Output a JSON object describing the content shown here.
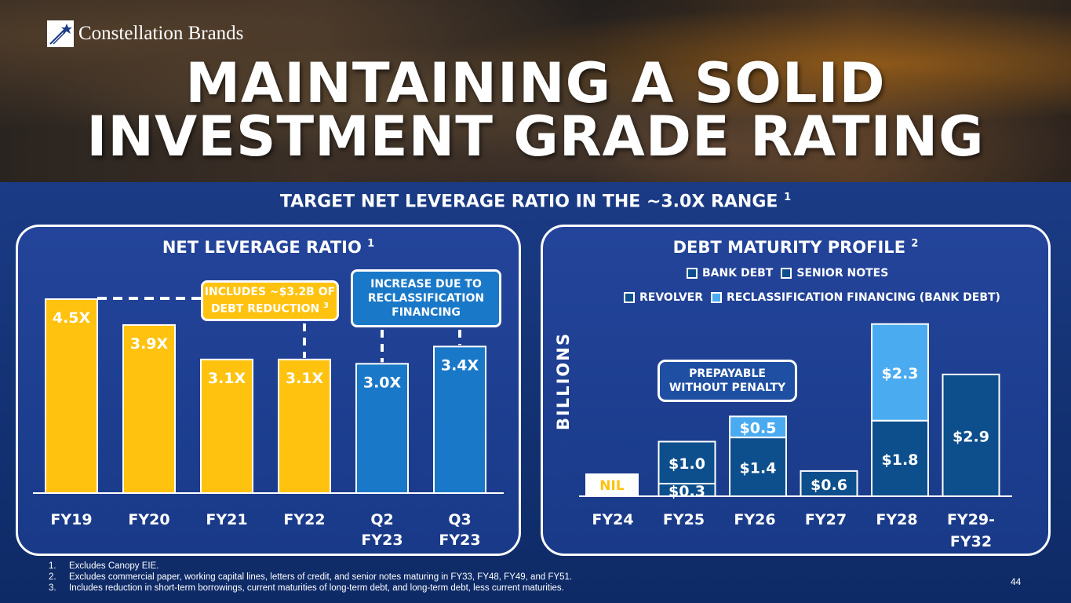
{
  "brand": {
    "name": "Constellation Brands",
    "icon": "star-logo-icon"
  },
  "headline": {
    "line1": "MAINTAINING A SOLID",
    "line2": "INVESTMENT GRADE RATING"
  },
  "subtitle": {
    "text": "TARGET NET LEVERAGE RATIO IN THE ~3.0X RANGE",
    "ref": "1"
  },
  "left_panel": {
    "title": "NET LEVERAGE RATIO",
    "ref": "1",
    "callout_yellow": {
      "line1": "INCLUDES ~$3.2B OF",
      "line2": "DEBT REDUCTION",
      "ref": "3"
    },
    "callout_blue": {
      "line1": "INCREASE DUE TO",
      "line2": "RECLASSIFICATION",
      "line3": "FINANCING"
    }
  },
  "right_panel": {
    "title": "DEBT MATURITY PROFILE",
    "ref": "2",
    "legend": [
      "BANK DEBT",
      "SENIOR NOTES",
      "REVOLVER",
      "RECLASSIFICATION FINANCING (BANK DEBT)"
    ],
    "callout": {
      "line1": "PREPAYABLE",
      "line2": "WITHOUT PENALTY"
    },
    "ylabel": "BILLIONS"
  },
  "colors": {
    "yellow": "#ffc20e",
    "blue": "#1a78c8",
    "bank_debt": "#0d4f8c",
    "senior_notes": "#0d4f8c",
    "revolver": "#0d4f8c",
    "reclassification": "#4aabf0",
    "panel_bg": "#1f4498"
  },
  "chart_data": [
    {
      "type": "bar",
      "title": "NET LEVERAGE RATIO",
      "categories": [
        "FY19",
        "FY20",
        "FY21",
        "FY22",
        "Q2 FY23",
        "Q3 FY23"
      ],
      "values": [
        4.5,
        3.9,
        3.1,
        3.1,
        3.0,
        3.4
      ],
      "labels": [
        "4.5X",
        "3.9X",
        "3.1X",
        "3.1X",
        "3.0X",
        "3.4X"
      ],
      "bar_colors": [
        "yellow",
        "yellow",
        "yellow",
        "yellow",
        "blue",
        "blue"
      ],
      "ylim": [
        0,
        4.7
      ]
    },
    {
      "type": "bar",
      "stacked": true,
      "title": "DEBT MATURITY PROFILE",
      "ylabel": "BILLIONS",
      "categories": [
        "FY24",
        "FY25",
        "FY26",
        "FY27",
        "FY28",
        "FY29-FY32"
      ],
      "series": [
        {
          "name": "BANK DEBT",
          "values": [
            0,
            0.3,
            1.4,
            0,
            1.8,
            0
          ],
          "labels": [
            "",
            "$0.3",
            "$1.4",
            "",
            "$1.8",
            ""
          ]
        },
        {
          "name": "SENIOR NOTES",
          "values": [
            0,
            1.0,
            0,
            0.6,
            0,
            2.9
          ],
          "labels": [
            "",
            "$1.0",
            "",
            "$0.6",
            "",
            "$2.9"
          ]
        },
        {
          "name": "RECLASSIFICATION FINANCING (BANK DEBT)",
          "values": [
            0,
            0,
            0.5,
            0,
            2.3,
            0
          ],
          "labels": [
            "",
            "",
            "$0.5",
            "",
            "$2.3",
            ""
          ]
        }
      ],
      "nil_label": "NIL",
      "ylim": [
        0,
        4.3
      ]
    }
  ],
  "footnotes": [
    {
      "num": "1.",
      "text": "Excludes Canopy EIE."
    },
    {
      "num": "2.",
      "text": "Excludes commercial paper, working capital lines, letters of credit, and senior notes maturing in FY33, FY48, FY49, and FY51."
    },
    {
      "num": "3.",
      "text": "Includes reduction in short-term borrowings, current maturities of long-term debt, and long-term debt, less current maturities."
    }
  ],
  "page_number": "44"
}
